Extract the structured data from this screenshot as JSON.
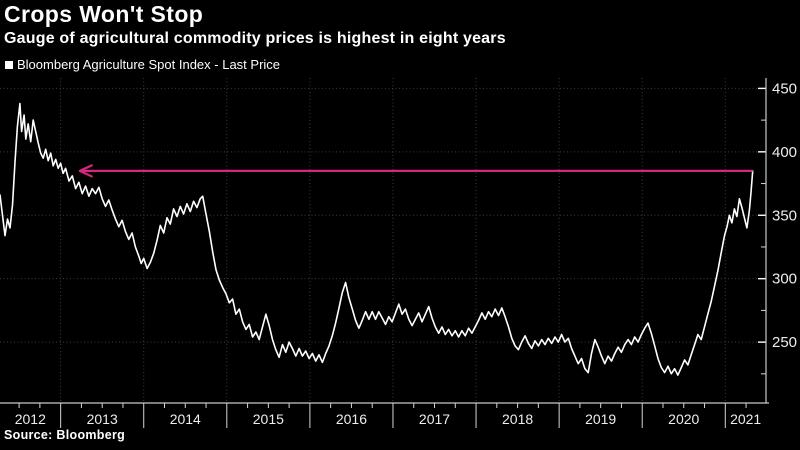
{
  "header": {
    "title": "Crops Won't Stop",
    "subtitle": "Gauge of agricultural commodity prices is highest in eight years"
  },
  "legend": {
    "label": "Bloomberg Agriculture Spot Index - Last Price"
  },
  "footer": {
    "source": "Source: Bloomberg"
  },
  "colors": {
    "background": "#000000",
    "line": "#ffffff",
    "accent": "#d7267d",
    "grid": "#3d3d3d",
    "axis": "#c9c9c9",
    "tick": "#d6d6d6",
    "label": "#ededed"
  },
  "chart_data": {
    "type": "line",
    "title": "Crops Won't Stop",
    "subtitle": "Gauge of agricultural commodity prices is highest in eight years",
    "xlabel": "",
    "ylabel": "",
    "grid": "dotted",
    "legend_position": "top-left",
    "xlim": [
      2012.27,
      2021.49
    ],
    "ylim": [
      202,
      458.2
    ],
    "x_tick_years": [
      "2012",
      "2013",
      "2014",
      "2015",
      "2016",
      "2017",
      "2018",
      "2019",
      "2020",
      "2021"
    ],
    "x_year_boundaries": [
      2013,
      2014,
      2015,
      2016,
      2017,
      2018,
      2019,
      2020,
      2021
    ],
    "x_minor_step_years": 0.25,
    "y_ticks": [
      250,
      300,
      350,
      400,
      450
    ],
    "y_minor_ticks": [
      225,
      275,
      325,
      375,
      425
    ],
    "annotation": {
      "type": "arrow-left",
      "y_value": 385,
      "x_start_year": 2021.33,
      "x_end_year": 2013.23,
      "color": "#d7267d"
    },
    "series": [
      {
        "name": "Bloomberg Agriculture Spot Index - Last Price",
        "color": "#ffffff",
        "points": [
          [
            2012.27,
            366
          ],
          [
            2012.3,
            350
          ],
          [
            2012.33,
            334
          ],
          [
            2012.36,
            347
          ],
          [
            2012.39,
            340
          ],
          [
            2012.42,
            358
          ],
          [
            2012.45,
            392
          ],
          [
            2012.48,
            420
          ],
          [
            2012.51,
            438
          ],
          [
            2012.53,
            416
          ],
          [
            2012.56,
            429
          ],
          [
            2012.58,
            410
          ],
          [
            2012.61,
            422
          ],
          [
            2012.64,
            408
          ],
          [
            2012.67,
            425
          ],
          [
            2012.7,
            416
          ],
          [
            2012.73,
            407
          ],
          [
            2012.76,
            399
          ],
          [
            2012.79,
            395
          ],
          [
            2012.82,
            402
          ],
          [
            2012.85,
            393
          ],
          [
            2012.88,
            399
          ],
          [
            2012.91,
            389
          ],
          [
            2012.94,
            394
          ],
          [
            2012.97,
            387
          ],
          [
            2013.0,
            391
          ],
          [
            2013.03,
            383
          ],
          [
            2013.06,
            387
          ],
          [
            2013.1,
            377
          ],
          [
            2013.14,
            381
          ],
          [
            2013.18,
            371
          ],
          [
            2013.22,
            376
          ],
          [
            2013.26,
            367
          ],
          [
            2013.3,
            373
          ],
          [
            2013.34,
            365
          ],
          [
            2013.38,
            371
          ],
          [
            2013.42,
            367
          ],
          [
            2013.46,
            372
          ],
          [
            2013.5,
            363
          ],
          [
            2013.54,
            357
          ],
          [
            2013.58,
            362
          ],
          [
            2013.62,
            354
          ],
          [
            2013.66,
            347
          ],
          [
            2013.7,
            341
          ],
          [
            2013.74,
            346
          ],
          [
            2013.78,
            337
          ],
          [
            2013.82,
            331
          ],
          [
            2013.86,
            336
          ],
          [
            2013.9,
            325
          ],
          [
            2013.94,
            318
          ],
          [
            2013.97,
            312
          ],
          [
            2014.0,
            316
          ],
          [
            2014.04,
            308
          ],
          [
            2014.08,
            313
          ],
          [
            2014.12,
            320
          ],
          [
            2014.16,
            330
          ],
          [
            2014.2,
            342
          ],
          [
            2014.24,
            336
          ],
          [
            2014.28,
            348
          ],
          [
            2014.32,
            343
          ],
          [
            2014.36,
            355
          ],
          [
            2014.4,
            349
          ],
          [
            2014.44,
            357
          ],
          [
            2014.48,
            351
          ],
          [
            2014.52,
            359
          ],
          [
            2014.56,
            353
          ],
          [
            2014.6,
            361
          ],
          [
            2014.64,
            356
          ],
          [
            2014.68,
            363
          ],
          [
            2014.71,
            365
          ],
          [
            2014.75,
            351
          ],
          [
            2014.79,
            337
          ],
          [
            2014.83,
            321
          ],
          [
            2014.87,
            307
          ],
          [
            2014.91,
            299
          ],
          [
            2014.95,
            293
          ],
          [
            2014.99,
            288
          ],
          [
            2015.03,
            281
          ],
          [
            2015.07,
            284
          ],
          [
            2015.11,
            272
          ],
          [
            2015.15,
            276
          ],
          [
            2015.19,
            266
          ],
          [
            2015.23,
            260
          ],
          [
            2015.27,
            264
          ],
          [
            2015.31,
            254
          ],
          [
            2015.35,
            258
          ],
          [
            2015.39,
            252
          ],
          [
            2015.43,
            262
          ],
          [
            2015.47,
            272
          ],
          [
            2015.51,
            263
          ],
          [
            2015.55,
            252
          ],
          [
            2015.59,
            244
          ],
          [
            2015.63,
            238
          ],
          [
            2015.67,
            248
          ],
          [
            2015.71,
            242
          ],
          [
            2015.75,
            250
          ],
          [
            2015.79,
            245
          ],
          [
            2015.83,
            239
          ],
          [
            2015.87,
            245
          ],
          [
            2015.91,
            239
          ],
          [
            2015.95,
            243
          ],
          [
            2015.99,
            237
          ],
          [
            2016.03,
            241
          ],
          [
            2016.07,
            235
          ],
          [
            2016.11,
            240
          ],
          [
            2016.15,
            234
          ],
          [
            2016.19,
            241
          ],
          [
            2016.23,
            247
          ],
          [
            2016.27,
            255
          ],
          [
            2016.31,
            265
          ],
          [
            2016.35,
            277
          ],
          [
            2016.39,
            289
          ],
          [
            2016.43,
            297
          ],
          [
            2016.47,
            285
          ],
          [
            2016.51,
            276
          ],
          [
            2016.55,
            267
          ],
          [
            2016.59,
            261
          ],
          [
            2016.63,
            267
          ],
          [
            2016.67,
            274
          ],
          [
            2016.71,
            268
          ],
          [
            2016.75,
            274
          ],
          [
            2016.79,
            268
          ],
          [
            2016.83,
            274
          ],
          [
            2016.87,
            269
          ],
          [
            2016.91,
            264
          ],
          [
            2016.95,
            270
          ],
          [
            2016.99,
            266
          ],
          [
            2017.03,
            273
          ],
          [
            2017.07,
            280
          ],
          [
            2017.11,
            272
          ],
          [
            2017.15,
            276
          ],
          [
            2017.19,
            268
          ],
          [
            2017.23,
            263
          ],
          [
            2017.27,
            268
          ],
          [
            2017.31,
            273
          ],
          [
            2017.35,
            266
          ],
          [
            2017.39,
            272
          ],
          [
            2017.43,
            278
          ],
          [
            2017.47,
            269
          ],
          [
            2017.51,
            262
          ],
          [
            2017.55,
            257
          ],
          [
            2017.59,
            262
          ],
          [
            2017.63,
            256
          ],
          [
            2017.67,
            260
          ],
          [
            2017.71,
            255
          ],
          [
            2017.75,
            259
          ],
          [
            2017.79,
            254
          ],
          [
            2017.83,
            259
          ],
          [
            2017.87,
            255
          ],
          [
            2017.91,
            261
          ],
          [
            2017.95,
            257
          ],
          [
            2017.99,
            262
          ],
          [
            2018.03,
            267
          ],
          [
            2018.07,
            273
          ],
          [
            2018.11,
            268
          ],
          [
            2018.15,
            274
          ],
          [
            2018.19,
            270
          ],
          [
            2018.23,
            276
          ],
          [
            2018.27,
            271
          ],
          [
            2018.31,
            277
          ],
          [
            2018.35,
            270
          ],
          [
            2018.39,
            262
          ],
          [
            2018.43,
            253
          ],
          [
            2018.47,
            247
          ],
          [
            2018.51,
            244
          ],
          [
            2018.55,
            250
          ],
          [
            2018.59,
            255
          ],
          [
            2018.63,
            249
          ],
          [
            2018.67,
            245
          ],
          [
            2018.71,
            251
          ],
          [
            2018.75,
            247
          ],
          [
            2018.79,
            252
          ],
          [
            2018.83,
            248
          ],
          [
            2018.87,
            253
          ],
          [
            2018.91,
            249
          ],
          [
            2018.95,
            254
          ],
          [
            2018.99,
            250
          ],
          [
            2019.03,
            256
          ],
          [
            2019.07,
            250
          ],
          [
            2019.11,
            253
          ],
          [
            2019.15,
            245
          ],
          [
            2019.19,
            239
          ],
          [
            2019.23,
            233
          ],
          [
            2019.27,
            237
          ],
          [
            2019.31,
            229
          ],
          [
            2019.35,
            226
          ],
          [
            2019.39,
            241
          ],
          [
            2019.43,
            252
          ],
          [
            2019.47,
            246
          ],
          [
            2019.51,
            239
          ],
          [
            2019.55,
            233
          ],
          [
            2019.59,
            239
          ],
          [
            2019.63,
            235
          ],
          [
            2019.67,
            241
          ],
          [
            2019.71,
            246
          ],
          [
            2019.75,
            242
          ],
          [
            2019.79,
            248
          ],
          [
            2019.83,
            252
          ],
          [
            2019.87,
            248
          ],
          [
            2019.91,
            254
          ],
          [
            2019.95,
            250
          ],
          [
            2019.99,
            256
          ],
          [
            2020.03,
            261
          ],
          [
            2020.07,
            265
          ],
          [
            2020.11,
            257
          ],
          [
            2020.15,
            247
          ],
          [
            2020.19,
            237
          ],
          [
            2020.23,
            230
          ],
          [
            2020.27,
            226
          ],
          [
            2020.31,
            231
          ],
          [
            2020.35,
            225
          ],
          [
            2020.39,
            229
          ],
          [
            2020.43,
            224
          ],
          [
            2020.47,
            230
          ],
          [
            2020.51,
            236
          ],
          [
            2020.55,
            232
          ],
          [
            2020.59,
            240
          ],
          [
            2020.63,
            248
          ],
          [
            2020.67,
            256
          ],
          [
            2020.71,
            252
          ],
          [
            2020.75,
            262
          ],
          [
            2020.79,
            272
          ],
          [
            2020.83,
            282
          ],
          [
            2020.87,
            294
          ],
          [
            2020.91,
            306
          ],
          [
            2020.95,
            320
          ],
          [
            2020.99,
            334
          ],
          [
            2021.02,
            341
          ],
          [
            2021.05,
            350
          ],
          [
            2021.08,
            344
          ],
          [
            2021.11,
            355
          ],
          [
            2021.14,
            349
          ],
          [
            2021.17,
            363
          ],
          [
            2021.2,
            356
          ],
          [
            2021.23,
            348
          ],
          [
            2021.26,
            340
          ],
          [
            2021.29,
            354
          ],
          [
            2021.31,
            368
          ],
          [
            2021.33,
            385
          ]
        ]
      }
    ]
  }
}
